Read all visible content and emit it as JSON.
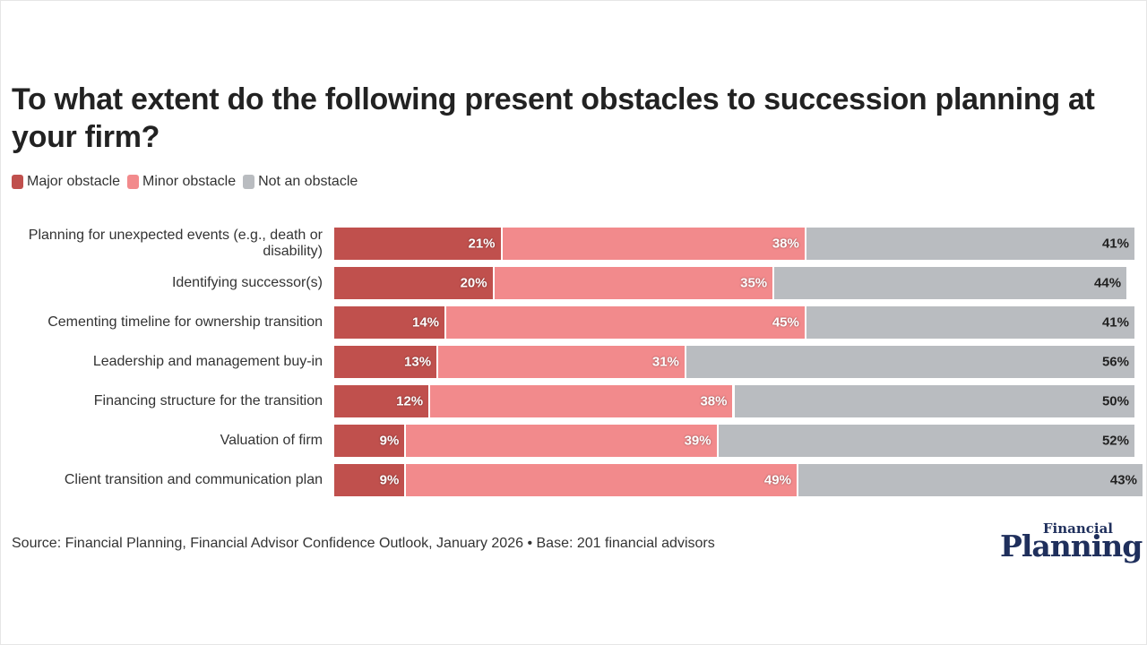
{
  "title": "To what extent do the following present obstacles to succession planning at your firm?",
  "colors": {
    "major": "#c0504d",
    "minor": "#f28a8c",
    "not": "#b9bcc0"
  },
  "legend": {
    "major": "Major obstacle",
    "minor": "Minor obstacle",
    "not": "Not an obstacle"
  },
  "chart_data": {
    "type": "bar",
    "orientation": "horizontal",
    "stacked": true,
    "title": "To what extent do the following present obstacles to succession planning at your firm?",
    "xlim": [
      0,
      100
    ],
    "categories": [
      "Planning for unexpected events (e.g., death or disability)",
      "Identifying successor(s)",
      "Cementing timeline for ownership transition",
      "Leadership and management buy-in",
      "Financing structure for the transition",
      "Valuation of firm",
      "Client transition and communication plan"
    ],
    "series": [
      {
        "name": "Major obstacle",
        "values": [
          21,
          20,
          14,
          13,
          12,
          9,
          9
        ]
      },
      {
        "name": "Minor obstacle",
        "values": [
          38,
          35,
          45,
          31,
          38,
          39,
          49
        ]
      },
      {
        "name": "Not an obstacle",
        "values": [
          41,
          44,
          41,
          56,
          50,
          52,
          43
        ]
      }
    ],
    "value_suffix": "%",
    "legend_position": "top-left"
  },
  "source": "Source: Financial Planning, Financial Advisor Confidence Outlook, January 2026 • Base: 201 financial advisors",
  "logo": {
    "top": "Financial",
    "main": "Planning"
  }
}
